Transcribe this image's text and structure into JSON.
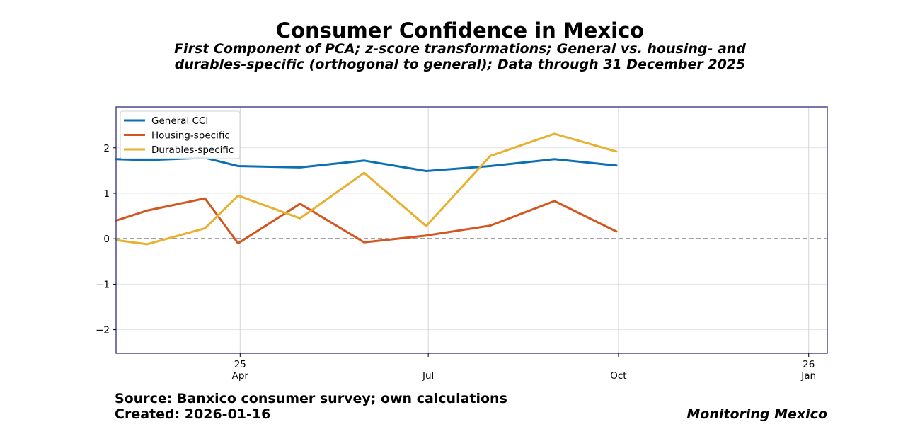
{
  "chart_data": {
    "type": "line",
    "title": "Consumer Confidence in Mexico",
    "subtitle_lines": [
      "First Component of PCA; z-score transformations; General vs. housing- and",
      "durables-specific (orthogonal to general); Data through 31 December 2025"
    ],
    "xlabel": "",
    "ylabel": "",
    "x": [
      "2025-01-31",
      "2025-02-15",
      "2025-03-15",
      "2025-03-31",
      "2025-04-30",
      "2025-05-31",
      "2025-06-30",
      "2025-07-31",
      "2025-08-31",
      "2025-09-30"
    ],
    "series": [
      {
        "name": "General CCI",
        "color": "#0b6fb4",
        "values": [
          1.75,
          1.73,
          1.78,
          1.6,
          1.57,
          1.72,
          1.49,
          1.6,
          1.75,
          1.61
        ]
      },
      {
        "name": "Housing-specific",
        "color": "#d4561f",
        "values": [
          0.4,
          0.62,
          0.89,
          -0.1,
          0.77,
          -0.08,
          0.07,
          0.29,
          0.83,
          0.16
        ]
      },
      {
        "name": "Durables-specific",
        "color": "#e8b02e",
        "values": [
          -0.03,
          -0.12,
          0.23,
          0.95,
          0.45,
          1.45,
          0.28,
          1.82,
          2.31,
          1.92
        ]
      }
    ],
    "xlim": [
      "2025-01-31",
      "2026-01-10"
    ],
    "ylim": [
      -2.52,
      2.9
    ],
    "yticks": [
      2,
      1,
      0,
      -1,
      -2
    ],
    "ytick_labels": [
      "2",
      "1",
      "0",
      "−1",
      "−2"
    ],
    "xticks": [
      {
        "date": "2025-04-01",
        "labels": [
          "25",
          "Apr"
        ]
      },
      {
        "date": "2025-07-01",
        "labels": [
          "",
          "Jul"
        ]
      },
      {
        "date": "2025-10-01",
        "labels": [
          "",
          "Oct"
        ]
      },
      {
        "date": "2026-01-01",
        "labels": [
          "26",
          "Jan"
        ]
      }
    ],
    "reference_line": 0,
    "grid": true,
    "legend_position": "top-left",
    "frame_color": "#4b4a8c"
  },
  "footer": {
    "source": "Source: Banxico consumer survey; own calculations",
    "created": "Created: 2026-01-16",
    "brand": "Monitoring Mexico"
  }
}
